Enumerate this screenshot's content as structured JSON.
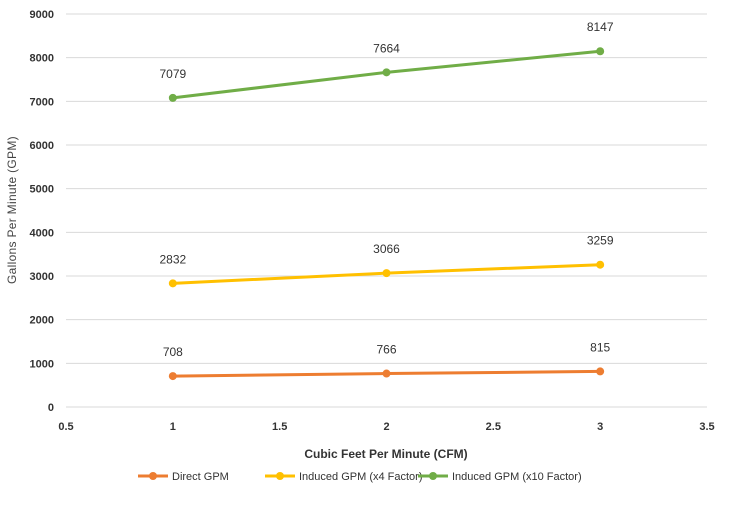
{
  "chart_data": {
    "type": "line",
    "xlabel": "Cubic Feet Per Minute (CFM)",
    "ylabel": "Gallons Per Minute (GPM)",
    "xlim": [
      0.5,
      3.5
    ],
    "ylim": [
      0,
      9000
    ],
    "x_ticks": [
      "0.5",
      "1",
      "1.5",
      "2",
      "2.5",
      "3",
      "3.5"
    ],
    "y_ticks": [
      "0",
      "1000",
      "2000",
      "3000",
      "4000",
      "5000",
      "6000",
      "7000",
      "8000",
      "9000"
    ],
    "grid": "horizontal",
    "legend_position": "bottom",
    "x": [
      1,
      2,
      3
    ],
    "series": [
      {
        "name": "Direct GPM",
        "color": "#ed7d31",
        "values": [
          708,
          766,
          815
        ],
        "labels": [
          "708",
          "766",
          "815"
        ]
      },
      {
        "name": "Induced GPM (x4 Factor)",
        "color": "#ffc000",
        "values": [
          2832,
          3066,
          3259
        ],
        "labels": [
          "2832",
          "3066",
          "3259"
        ]
      },
      {
        "name": "Induced GPM (x10 Factor)",
        "color": "#70ad47",
        "values": [
          7079,
          7664,
          8147
        ],
        "labels": [
          "7079",
          "7664",
          "8147"
        ]
      }
    ]
  }
}
